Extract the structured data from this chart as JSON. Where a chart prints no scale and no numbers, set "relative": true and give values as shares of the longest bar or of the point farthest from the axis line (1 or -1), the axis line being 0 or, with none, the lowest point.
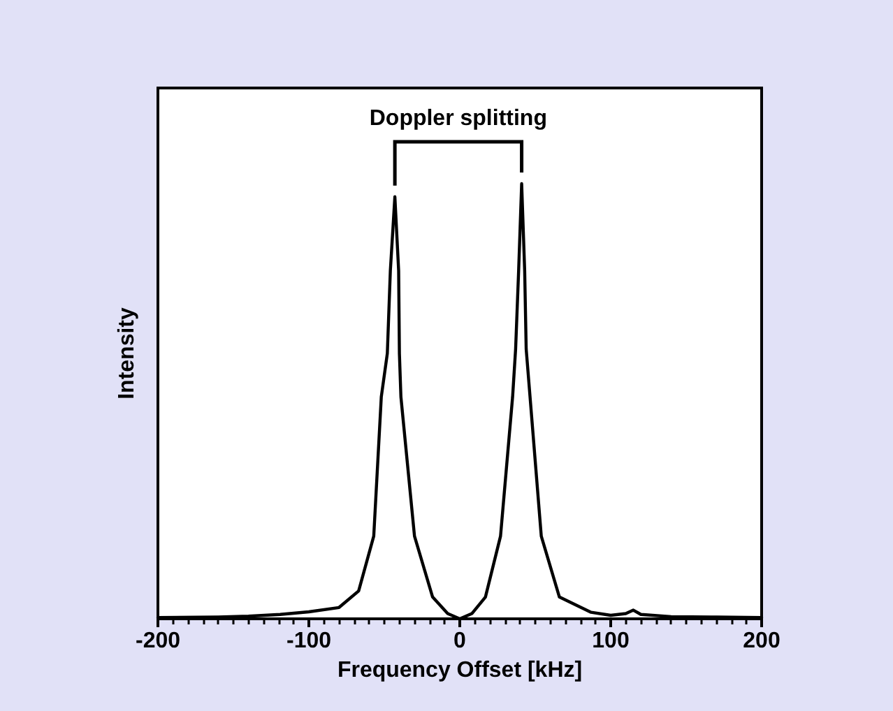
{
  "chart_data": {
    "type": "line",
    "xlabel": "Frequency Offset [kHz]",
    "ylabel": "Intensity",
    "relative": true,
    "annotations": [
      "Doppler splitting"
    ],
    "xlim": [
      -200,
      200
    ],
    "xticks": [
      -200,
      -100,
      0,
      100,
      200
    ],
    "marker": "none",
    "line_style": "solid",
    "tick_labels": "x",
    "series": [
      {
        "color": "#000000",
        "x": [
          -200,
          -160,
          -140,
          -119,
          -100,
          -80,
          -67,
          -57,
          -52,
          -48,
          -46,
          -43,
          -40.5,
          -40,
          -39,
          -30,
          -18,
          -8,
          0,
          8,
          17,
          27,
          35,
          37,
          39,
          41,
          43,
          44,
          54,
          66,
          87,
          100,
          110,
          115,
          120,
          140,
          170,
          200
        ],
        "values": [
          0.003,
          0.004,
          0.006,
          0.01,
          0.016,
          0.026,
          0.064,
          0.19,
          0.51,
          0.61,
          0.8,
          0.97,
          0.8,
          0.61,
          0.51,
          0.19,
          0.05,
          0.012,
          0.0,
          0.012,
          0.05,
          0.19,
          0.51,
          0.62,
          0.8,
          1.0,
          0.8,
          0.62,
          0.19,
          0.05,
          0.015,
          0.008,
          0.012,
          0.02,
          0.01,
          0.005,
          0.004,
          0.003
        ]
      }
    ]
  }
}
